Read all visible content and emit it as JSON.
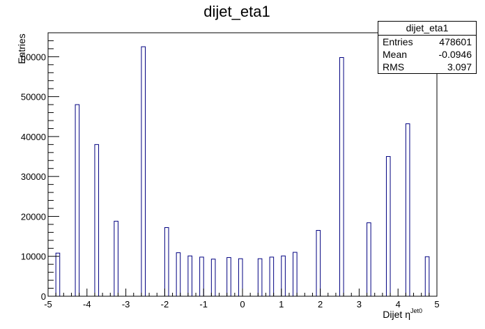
{
  "chart_data": {
    "type": "bar",
    "title": "dijet_eta1",
    "xlabel": "Dijet η",
    "xlabel_superscript": "Jet0",
    "ylabel": "Entries",
    "xlim": [
      -5,
      5
    ],
    "ylim": [
      0,
      66000
    ],
    "grid": false,
    "x_ticks": [
      "-5",
      "-4",
      "-3",
      "-2",
      "-1",
      "0",
      "1",
      "2",
      "3",
      "4",
      "5"
    ],
    "y_ticks": [
      "0",
      "10000",
      "20000",
      "30000",
      "40000",
      "50000",
      "60000"
    ],
    "bin_width": 0.1,
    "bins": [
      {
        "x": -4.75,
        "value": 10800
      },
      {
        "x": -4.25,
        "value": 48000
      },
      {
        "x": -3.75,
        "value": 38000
      },
      {
        "x": -3.25,
        "value": 18800
      },
      {
        "x": -2.55,
        "value": 62500
      },
      {
        "x": -1.95,
        "value": 17200
      },
      {
        "x": -1.65,
        "value": 10900
      },
      {
        "x": -1.35,
        "value": 10100
      },
      {
        "x": -1.05,
        "value": 9800
      },
      {
        "x": -0.75,
        "value": 9300
      },
      {
        "x": -0.35,
        "value": 9700
      },
      {
        "x": -0.05,
        "value": 9400
      },
      {
        "x": 0.45,
        "value": 9400
      },
      {
        "x": 0.75,
        "value": 9800
      },
      {
        "x": 1.05,
        "value": 10100
      },
      {
        "x": 1.35,
        "value": 11000
      },
      {
        "x": 1.95,
        "value": 16500
      },
      {
        "x": 2.55,
        "value": 59800
      },
      {
        "x": 3.25,
        "value": 18400
      },
      {
        "x": 3.75,
        "value": 35000
      },
      {
        "x": 4.25,
        "value": 43200
      },
      {
        "x": 4.75,
        "value": 9900
      }
    ],
    "stats": {
      "title": "dijet_eta1",
      "rows": [
        {
          "label": "Entries",
          "value": "478601"
        },
        {
          "label": "Mean",
          "value": "-0.0946"
        },
        {
          "label": "RMS",
          "value": "3.097"
        }
      ]
    },
    "colors": {
      "bar_outline": "#000080",
      "axis": "#000000",
      "background": "#ffffff"
    }
  }
}
